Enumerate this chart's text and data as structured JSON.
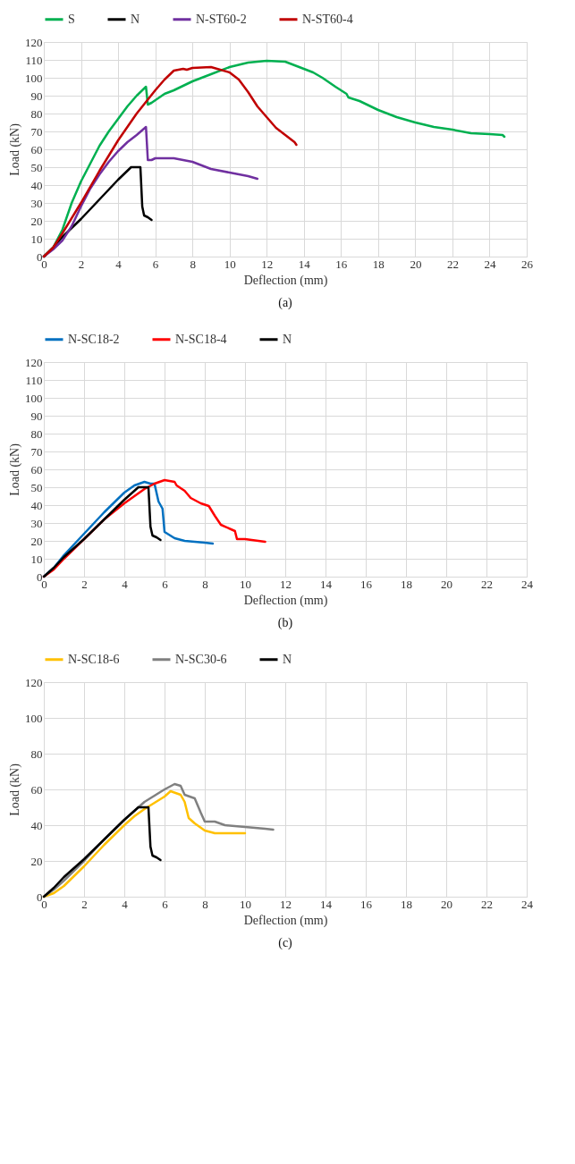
{
  "chart_data": [
    {
      "type": "line",
      "xlabel": "Deflection (mm)",
      "ylabel": "Load (kN)",
      "annotations": [
        "(a)"
      ],
      "legend": "top",
      "grid": true,
      "xlim": [
        0,
        26
      ],
      "xticks": [
        0,
        2,
        4,
        6,
        8,
        10,
        12,
        14,
        16,
        18,
        20,
        22,
        24,
        26
      ],
      "ylim": [
        0,
        120
      ],
      "yticks": [
        0,
        10,
        20,
        30,
        40,
        50,
        60,
        70,
        80,
        90,
        100,
        110,
        120
      ],
      "series": [
        {
          "name": "S",
          "color": "#00b050",
          "x": [
            0,
            0.5,
            1,
            1.5,
            2,
            2.5,
            3,
            3.5,
            4,
            4.5,
            5,
            5.5,
            5.6,
            5.8,
            6.5,
            7,
            8,
            9,
            10,
            11,
            12,
            13,
            13.5,
            14.5,
            15,
            15.7,
            16.3,
            16.4,
            17,
            18,
            19,
            20,
            21,
            22,
            23,
            24,
            24.7,
            24.8
          ],
          "values": [
            0,
            5,
            15,
            30,
            42,
            52,
            62,
            70,
            77,
            84,
            90,
            95,
            85,
            86,
            91,
            93,
            98,
            102,
            106,
            108.5,
            109.5,
            109,
            107,
            103,
            100,
            95,
            91,
            89,
            87,
            82,
            78,
            75,
            72.5,
            71,
            69,
            68.5,
            68,
            67
          ]
        },
        {
          "name": "N",
          "color": "#000000",
          "x": [
            0,
            0.5,
            1,
            1.5,
            2,
            3,
            4,
            4.7,
            5.2,
            5.3,
            5.4,
            5.6,
            5.8
          ],
          "values": [
            0,
            5,
            11,
            16,
            21,
            32,
            43,
            50,
            50,
            28,
            23,
            22,
            20.5
          ]
        },
        {
          "name": "N-ST60-2",
          "color": "#7030a0",
          "x": [
            0,
            0.5,
            1,
            1.5,
            2,
            2.5,
            3,
            3.5,
            4,
            4.5,
            5,
            5.5,
            5.6,
            5.8,
            6,
            7,
            8,
            9,
            10,
            11,
            11.5
          ],
          "values": [
            0,
            4,
            9,
            17,
            28,
            38,
            46,
            53,
            59,
            64,
            68,
            72.5,
            54,
            54,
            55,
            55,
            53,
            49,
            47,
            45,
            43.5
          ]
        },
        {
          "name": "N-ST60-4",
          "color": "#c00000",
          "x": [
            0,
            0.5,
            1,
            2,
            3,
            4,
            5,
            6,
            6.5,
            7,
            7.5,
            7.7,
            8,
            9,
            10,
            10.5,
            11,
            11.5,
            12,
            12.5,
            13,
            13.5,
            13.6
          ],
          "values": [
            0,
            5,
            13,
            30,
            48,
            65,
            80,
            93,
            99,
            104,
            105,
            104.5,
            105.5,
            106,
            103,
            99,
            92,
            84,
            78,
            72,
            68,
            64,
            62.5
          ]
        }
      ]
    },
    {
      "type": "line",
      "xlabel": "Deflection (mm)",
      "ylabel": "Load (kN)",
      "annotations": [
        "(b)"
      ],
      "legend": "top",
      "grid": true,
      "xlim": [
        0,
        24
      ],
      "xticks": [
        0,
        2,
        4,
        6,
        8,
        10,
        12,
        14,
        16,
        18,
        20,
        22,
        24
      ],
      "ylim": [
        0,
        120
      ],
      "yticks": [
        0,
        10,
        20,
        30,
        40,
        50,
        60,
        70,
        80,
        90,
        100,
        110,
        120
      ],
      "series": [
        {
          "name": "N-SC18-2",
          "color": "#0070c0",
          "x": [
            0,
            0.5,
            1,
            2,
            3,
            4,
            4.5,
            5,
            5.3,
            5.5,
            5.7,
            5.9,
            6,
            6.5,
            7,
            8,
            8.4
          ],
          "values": [
            0,
            5,
            12,
            24,
            36,
            47,
            51,
            53,
            52,
            52,
            42,
            38,
            25,
            21.5,
            20,
            19,
            18.5
          ]
        },
        {
          "name": "N-SC18-4",
          "color": "#ff0000",
          "x": [
            0,
            0.5,
            1,
            2,
            3,
            4,
            5,
            5.5,
            6,
            6.5,
            6.6,
            7,
            7.3,
            7.8,
            8.2,
            8.5,
            8.8,
            9.5,
            9.6,
            10,
            11
          ],
          "values": [
            0,
            4,
            10,
            21,
            32,
            41,
            49,
            52,
            54,
            53,
            51,
            48,
            44,
            41,
            39.5,
            34,
            29,
            25.5,
            21,
            21,
            19.5
          ]
        },
        {
          "name": "N",
          "color": "#000000",
          "x": [
            0,
            0.5,
            1,
            1.5,
            2,
            3,
            4,
            4.7,
            5.2,
            5.3,
            5.4,
            5.6,
            5.8
          ],
          "values": [
            0,
            5,
            11,
            16,
            21,
            32,
            43,
            50,
            50,
            28,
            23,
            22,
            20.5
          ]
        }
      ]
    },
    {
      "type": "line",
      "xlabel": "Deflection (mm)",
      "ylabel": "Load (kN)",
      "annotations": [
        "(c)"
      ],
      "legend": "top",
      "grid": true,
      "xlim": [
        0,
        24
      ],
      "xticks": [
        0,
        2,
        4,
        6,
        8,
        10,
        12,
        14,
        16,
        18,
        20,
        22,
        24
      ],
      "ylim": [
        0,
        120
      ],
      "yticks": [
        0,
        20,
        40,
        60,
        80,
        100,
        120
      ],
      "series": [
        {
          "name": "N-SC18-6",
          "color": "#ffc000",
          "x": [
            0,
            0.5,
            1,
            2,
            3,
            4,
            4.5,
            5,
            6,
            6.3,
            6.8,
            7,
            7.2,
            7.5,
            8,
            8.5,
            9,
            10
          ],
          "values": [
            0,
            2,
            6,
            17,
            29,
            40,
            45,
            49,
            56,
            59,
            57,
            53,
            44,
            41,
            37,
            35.5,
            35.5,
            35.5
          ]
        },
        {
          "name": "N-SC30-6",
          "color": "#808080",
          "x": [
            0,
            0.5,
            1,
            2,
            3,
            4,
            5,
            6,
            6.5,
            6.8,
            7,
            7.5,
            7.8,
            8,
            8.5,
            9,
            10,
            11,
            11.4
          ],
          "values": [
            0,
            4,
            9,
            20,
            32,
            43,
            53,
            60,
            63,
            62,
            57,
            55,
            47,
            42,
            42,
            40,
            39,
            38,
            37.5
          ]
        },
        {
          "name": "N",
          "color": "#000000",
          "x": [
            0,
            0.5,
            1,
            1.5,
            2,
            3,
            4,
            4.7,
            5.2,
            5.3,
            5.4,
            5.6,
            5.8
          ],
          "values": [
            0,
            5,
            11,
            16,
            21,
            32,
            43,
            50,
            50,
            28,
            23,
            22,
            20.5
          ]
        }
      ]
    }
  ]
}
